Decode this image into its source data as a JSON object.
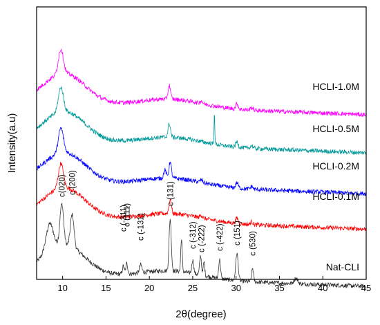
{
  "chart_data": {
    "type": "line",
    "xlabel": "2θ(degree)",
    "ylabel": "Intensity(a.u)",
    "xlim": [
      7,
      45
    ],
    "ylim": [
      0,
      100
    ],
    "x_ticks": [
      10,
      15,
      20,
      25,
      30,
      35,
      40,
      45
    ],
    "grid": false,
    "series": [
      {
        "name": "Nat-CLI",
        "color": "#333333",
        "baseline": 2,
        "peaks": [
          [
            8.5,
            10,
            0.6
          ],
          [
            9.9,
            15,
            0.3
          ],
          [
            11.1,
            12,
            0.3
          ],
          [
            17.0,
            3,
            0.15
          ],
          [
            17.4,
            4,
            0.15
          ],
          [
            19.0,
            3,
            0.2
          ],
          [
            22.4,
            19,
            0.18
          ],
          [
            23.7,
            12,
            0.12
          ],
          [
            25.0,
            5,
            0.15
          ],
          [
            25.9,
            7,
            0.15
          ],
          [
            26.3,
            5,
            0.12
          ],
          [
            28.1,
            7,
            0.15
          ],
          [
            30.1,
            10,
            0.2
          ],
          [
            31.9,
            5,
            0.15
          ],
          [
            36.9,
            2,
            0.3
          ]
        ]
      },
      {
        "name": "HCLI-0.1M",
        "color": "#ff0000",
        "baseline": 23,
        "peaks": [
          [
            9.8,
            9,
            0.4
          ],
          [
            22.4,
            5,
            0.2
          ],
          [
            26.0,
            1,
            0.2
          ],
          [
            30.1,
            2,
            0.2
          ],
          [
            31.8,
            1,
            0.2
          ]
        ]
      },
      {
        "name": "HCLI-0.2M",
        "color": "#0000ff",
        "baseline": 36,
        "peaks": [
          [
            9.8,
            9,
            0.4
          ],
          [
            21.8,
            3,
            0.2
          ],
          [
            22.4,
            6,
            0.2
          ],
          [
            26.0,
            1,
            0.2
          ],
          [
            30.1,
            2,
            0.2
          ],
          [
            31.8,
            1,
            0.2
          ]
        ]
      },
      {
        "name": "HCLI-0.5M",
        "color": "#009999",
        "baseline": 51,
        "peaks": [
          [
            9.8,
            9,
            0.4
          ],
          [
            22.3,
            5,
            0.2
          ],
          [
            27.5,
            12,
            0.06
          ],
          [
            30.1,
            2,
            0.2
          ],
          [
            31.8,
            1,
            0.2
          ]
        ]
      },
      {
        "name": "HCLI-1.0M",
        "color": "#ff00ff",
        "baseline": 65,
        "peaks": [
          [
            9.8,
            9,
            0.4
          ],
          [
            22.3,
            5,
            0.2
          ],
          [
            26.0,
            1,
            0.2
          ],
          [
            30.1,
            2,
            0.2
          ],
          [
            31.8,
            1,
            0.2
          ]
        ]
      }
    ],
    "peak_labels": [
      {
        "text": "c(020)",
        "x": 9.9
      },
      {
        "text": "c (200)",
        "x": 11.1
      },
      {
        "text": "c (-311)",
        "x": 17.0
      },
      {
        "text": "c (111)",
        "x": 17.4
      },
      {
        "text": "c (-131)",
        "x": 19.0
      },
      {
        "text": "c (131)",
        "x": 22.4
      },
      {
        "text": "c (-312)",
        "x": 25.0
      },
      {
        "text": "c (-222)",
        "x": 26.0
      },
      {
        "text": "c (-422)",
        "x": 28.1
      },
      {
        "text": "c (151)",
        "x": 30.1
      },
      {
        "text": "c (530)",
        "x": 31.9
      }
    ]
  }
}
